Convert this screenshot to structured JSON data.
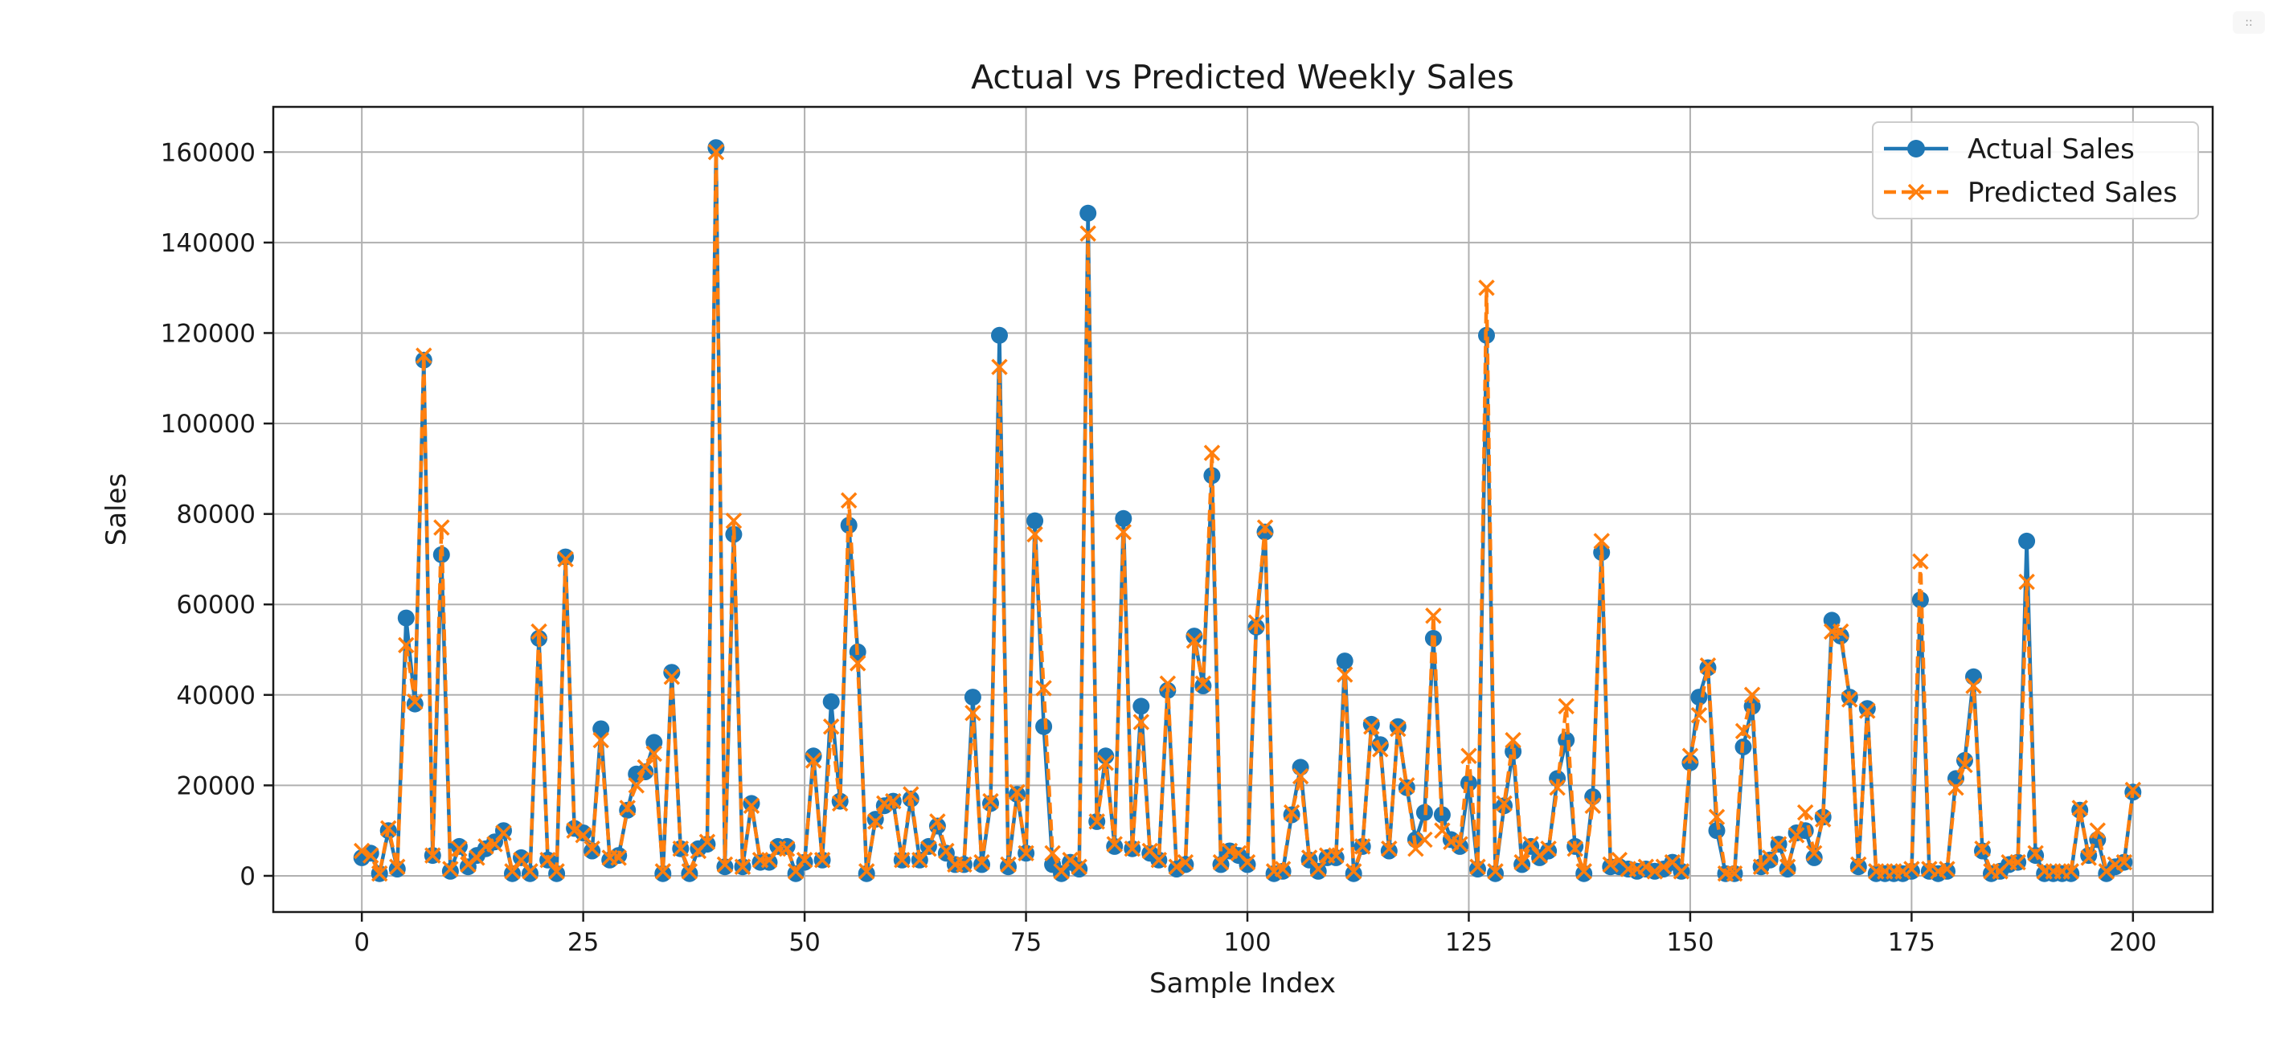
{
  "corner_button": "::",
  "chart_data": {
    "type": "line",
    "title": "Actual vs Predicted Weekly Sales",
    "xlabel": "Sample Index",
    "ylabel": "Sales",
    "xlim": [
      -10,
      209
    ],
    "ylim": [
      -8000,
      170000
    ],
    "xticks": [
      0,
      25,
      50,
      75,
      100,
      125,
      150,
      175,
      200
    ],
    "yticks": [
      0,
      20000,
      40000,
      60000,
      80000,
      100000,
      120000,
      140000,
      160000
    ],
    "grid": true,
    "legend_position": "top-right",
    "series": [
      {
        "name": "Actual Sales",
        "color": "#1f77b4",
        "marker": "circle",
        "line_style": "solid",
        "values": [
          4000,
          5000,
          500,
          10000,
          1500,
          57000,
          38000,
          114000,
          4500,
          71000,
          1000,
          6500,
          2000,
          4500,
          6000,
          7500,
          10000,
          500,
          4000,
          500,
          52500,
          3500,
          500,
          70500,
          10500,
          9500,
          5500,
          32500,
          3500,
          4500,
          14500,
          22500,
          23000,
          29500,
          500,
          45000,
          6000,
          500,
          6000,
          7000,
          161000,
          2000,
          75500,
          2000,
          16000,
          3000,
          3000,
          6500,
          6500,
          500,
          3000,
          26500,
          3500,
          38500,
          16500,
          77500,
          49500,
          500,
          12500,
          15500,
          16500,
          3500,
          17000,
          3500,
          6500,
          11000,
          5000,
          2500,
          2500,
          39500,
          2500,
          16000,
          119500,
          2000,
          18000,
          5000,
          78500,
          33000,
          2500,
          500,
          3000,
          1500,
          146500,
          12000,
          26500,
          6500,
          79000,
          6000,
          37500,
          5000,
          3500,
          41000,
          1500,
          2500,
          53000,
          42000,
          88500,
          2500,
          5500,
          4500,
          2500,
          55000,
          76000,
          500,
          1000,
          13500,
          24000,
          3500,
          1000,
          4000,
          4000,
          47500,
          500,
          6500,
          33500,
          29000,
          5500,
          33000,
          19500,
          8000,
          14000,
          52500,
          13500,
          8000,
          6500,
          20500,
          1500,
          119500,
          500,
          15500,
          27500,
          2500,
          6500,
          4000,
          5500,
          21500,
          30000,
          6500,
          500,
          17500,
          71500,
          2000,
          2000,
          1500,
          1000,
          1500,
          1000,
          1500,
          3000,
          1000,
          25000,
          39500,
          46000,
          10000,
          500,
          500,
          28500,
          37500,
          2000,
          3500,
          7000,
          1500,
          9500,
          10000,
          4000,
          13000,
          56500,
          53000,
          39500,
          2000,
          37000,
          500,
          500,
          500,
          500,
          1000,
          61000,
          1000,
          500,
          1000,
          21500,
          25500,
          44000,
          5500,
          500,
          1000,
          2500,
          3000,
          74000,
          4500,
          500,
          500,
          500,
          500,
          14500,
          4500,
          8000,
          500,
          2000,
          3000,
          18500
        ]
      },
      {
        "name": "Predicted Sales",
        "color": "#ff7f0e",
        "marker": "x",
        "line_style": "dashed",
        "values": [
          5500,
          4500,
          500,
          10500,
          2000,
          51000,
          38500,
          115000,
          4500,
          77000,
          1500,
          6000,
          2500,
          4000,
          6500,
          7000,
          9500,
          1000,
          3500,
          1000,
          54000,
          3500,
          1000,
          70000,
          10000,
          9000,
          6000,
          30000,
          4000,
          4000,
          15000,
          20000,
          24000,
          27000,
          1000,
          44000,
          6000,
          1000,
          5500,
          7500,
          160000,
          2500,
          78500,
          2000,
          15500,
          3500,
          3500,
          6000,
          6000,
          1000,
          3500,
          25500,
          3500,
          33000,
          16000,
          83000,
          47000,
          1000,
          12000,
          16000,
          16500,
          3500,
          18000,
          3500,
          6000,
          12000,
          5500,
          2500,
          2500,
          36000,
          3000,
          16500,
          112500,
          2500,
          18500,
          5000,
          75500,
          41500,
          5000,
          1000,
          3500,
          2000,
          142000,
          12000,
          25000,
          7000,
          76000,
          6000,
          34000,
          5500,
          3500,
          42500,
          2000,
          3000,
          52000,
          42500,
          93500,
          3000,
          5500,
          5000,
          3000,
          56000,
          77000,
          1000,
          1500,
          14000,
          22000,
          4000,
          1500,
          4500,
          4500,
          44500,
          1000,
          6500,
          33000,
          28000,
          6000,
          32500,
          20000,
          6000,
          8000,
          57500,
          10000,
          7500,
          7000,
          26500,
          2000,
          130000,
          1000,
          16000,
          30000,
          3000,
          7000,
          4500,
          6000,
          19500,
          37500,
          6000,
          1000,
          15500,
          74000,
          2500,
          3500,
          1500,
          1500,
          2000,
          1000,
          2000,
          3000,
          1000,
          26500,
          35500,
          46500,
          13000,
          500,
          500,
          32000,
          40000,
          2000,
          4000,
          7000,
          2000,
          9000,
          14000,
          5000,
          12500,
          54000,
          54000,
          39000,
          2500,
          36500,
          1000,
          1000,
          1000,
          1000,
          1500,
          69500,
          1500,
          1000,
          1500,
          19500,
          24500,
          42000,
          6000,
          1000,
          1000,
          3000,
          3000,
          65000,
          5000,
          1000,
          1000,
          1000,
          1000,
          15000,
          4000,
          10000,
          1000,
          2500,
          3000,
          19000
        ]
      }
    ]
  }
}
